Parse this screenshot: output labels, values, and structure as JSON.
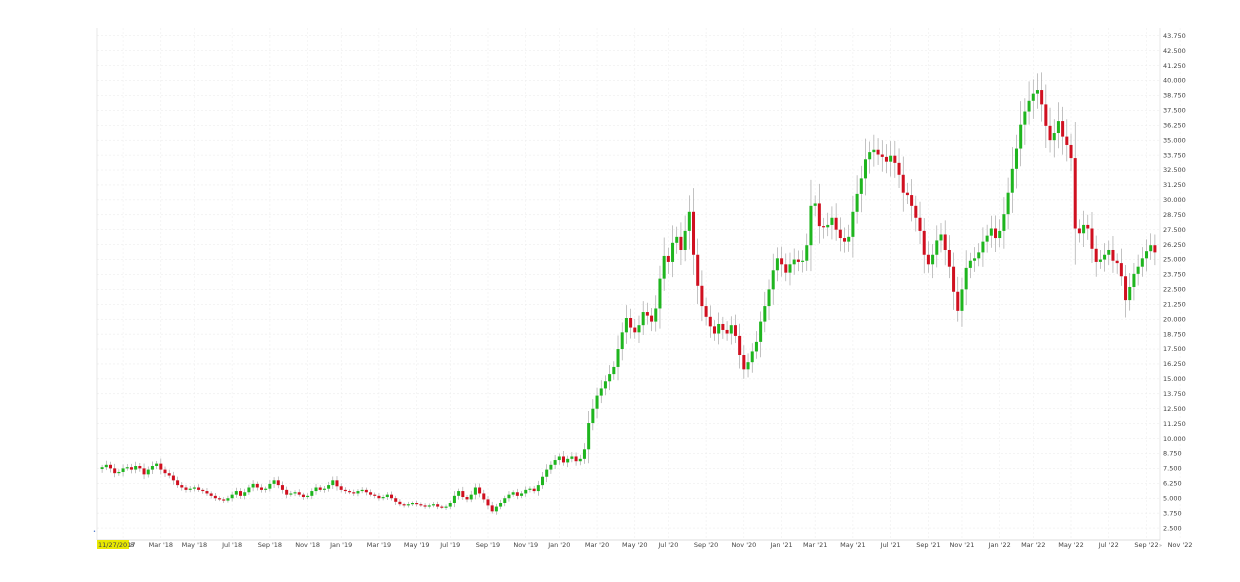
{
  "chart_data": {
    "type": "candlestick",
    "title": "",
    "xlabel": "",
    "ylabel": "",
    "ylim": [
      1.5,
      44.4
    ],
    "y_ticks": [
      "2.500",
      "3.750",
      "5.000",
      "6.250",
      "7.500",
      "8.750",
      "10.000",
      "11.250",
      "12.500",
      "13.750",
      "15.000",
      "16.250",
      "17.500",
      "18.750",
      "20.000",
      "21.250",
      "22.500",
      "23.750",
      "25.000",
      "26.250",
      "27.500",
      "28.750",
      "30.000",
      "31.250",
      "32.500",
      "33.750",
      "35.000",
      "36.250",
      "37.500",
      "38.750",
      "40.000",
      "41.250",
      "42.500",
      "43.750"
    ],
    "x_ticks": [
      "Jan '18",
      "Mar '18",
      "May '18",
      "Jul '18",
      "Sep '18",
      "Nov '18",
      "Jan '19",
      "Mar '19",
      "May '19",
      "Jul '19",
      "Sep '19",
      "Nov '19",
      "Jan '20",
      "Mar '20",
      "May '20",
      "Jul '20",
      "Sep '20",
      "Nov '20",
      "Jan '21",
      "Mar '21",
      "May '21",
      "Jul '21",
      "Sep '21",
      "Nov '21",
      "Jan '22",
      "Mar '22",
      "May '22",
      "Jul '22",
      "Sep '22",
      "Nov '22"
    ],
    "x_tick_weeks": [
      5,
      14,
      22,
      31,
      40,
      49,
      57,
      66,
      75,
      83,
      92,
      101,
      109,
      118,
      127,
      135,
      144,
      153,
      162,
      170,
      179,
      188,
      197,
      205,
      214,
      222,
      231,
      240,
      249,
      257
    ],
    "cursor_date": "11/27/2017",
    "candle_interval": "1 week",
    "start_week_date": "11/27/2017",
    "up_color": "#1fb51f",
    "down_color": "#d01020",
    "grid": true,
    "closes": [
      7.6,
      7.8,
      7.5,
      7.1,
      7.2,
      7.5,
      7.6,
      7.4,
      7.7,
      7.5,
      7.0,
      7.4,
      7.7,
      7.9,
      7.4,
      7.1,
      6.9,
      6.5,
      6.1,
      5.9,
      5.7,
      5.8,
      5.9,
      5.7,
      5.6,
      5.4,
      5.2,
      5.0,
      4.9,
      4.8,
      5.0,
      5.3,
      5.6,
      5.2,
      5.5,
      5.9,
      6.2,
      5.9,
      5.7,
      5.8,
      6.2,
      6.5,
      6.1,
      5.7,
      5.3,
      5.4,
      5.5,
      5.3,
      5.1,
      5.2,
      5.6,
      5.9,
      5.7,
      5.8,
      6.1,
      6.5,
      6.0,
      5.7,
      5.6,
      5.5,
      5.4,
      5.6,
      5.7,
      5.5,
      5.3,
      5.2,
      5.0,
      5.1,
      5.3,
      5.0,
      4.7,
      4.5,
      4.4,
      4.5,
      4.6,
      4.5,
      4.4,
      4.3,
      4.4,
      4.5,
      4.3,
      4.2,
      4.3,
      4.6,
      5.2,
      5.6,
      5.1,
      4.9,
      5.3,
      5.9,
      5.4,
      4.9,
      4.4,
      3.9,
      4.3,
      4.6,
      5.0,
      5.3,
      5.5,
      5.2,
      5.4,
      5.7,
      5.8,
      5.6,
      6.1,
      6.8,
      7.4,
      7.8,
      8.2,
      8.5,
      8.0,
      8.3,
      8.5,
      8.1,
      8.3,
      9.1,
      11.3,
      12.5,
      13.6,
      14.2,
      14.8,
      15.4,
      16.0,
      17.5,
      18.9,
      20.1,
      19.3,
      18.9,
      19.5,
      20.6,
      20.3,
      19.8,
      20.9,
      23.4,
      25.3,
      24.8,
      26.4,
      26.9,
      25.8,
      27.4,
      29.0,
      25.4,
      22.8,
      21.1,
      20.2,
      19.4,
      18.8,
      19.6,
      19.1,
      18.8,
      19.5,
      18.6,
      17.0,
      15.8,
      16.4,
      17.3,
      18.1,
      19.8,
      21.1,
      22.5,
      24.1,
      25.1,
      24.6,
      23.9,
      24.6,
      25.0,
      24.8,
      24.9,
      26.2,
      29.5,
      29.7,
      27.8,
      27.7,
      27.9,
      28.5,
      27.5,
      26.8,
      26.5,
      26.9,
      29.0,
      30.5,
      31.8,
      33.4,
      34.0,
      34.2,
      33.8,
      33.6,
      33.2,
      33.7,
      33.1,
      32.1,
      30.6,
      30.4,
      29.5,
      28.5,
      27.4,
      25.4,
      24.6,
      25.4,
      26.6,
      27.1,
      25.8,
      24.4,
      22.3,
      20.7,
      22.5,
      24.3,
      24.9,
      25.1,
      25.6,
      26.5,
      27.0,
      27.6,
      26.8,
      27.4,
      28.8,
      30.6,
      32.6,
      34.3,
      36.3,
      37.4,
      38.3,
      38.9,
      39.2,
      38.0,
      36.2,
      35.0,
      35.6,
      36.6,
      35.3,
      34.6,
      33.5,
      27.6,
      27.2,
      27.9,
      27.6,
      25.9,
      24.8,
      25.0,
      25.4,
      25.8,
      24.9,
      24.7,
      23.6,
      21.6,
      22.7,
      23.8,
      24.4,
      25.1,
      25.7,
      26.2,
      25.6
    ]
  }
}
